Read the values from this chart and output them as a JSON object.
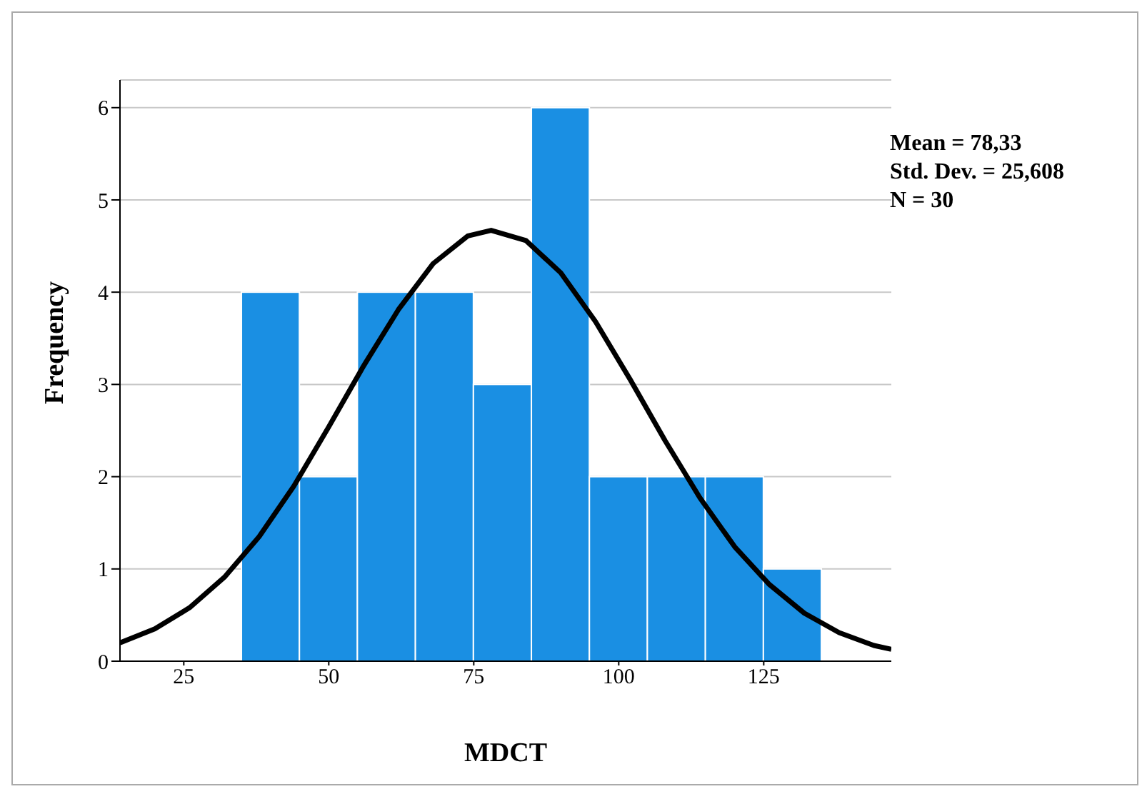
{
  "chart_data": {
    "type": "histogram",
    "xlabel": "MDCT",
    "ylabel": "Frequency",
    "bins": [
      35,
      45,
      55,
      65,
      75,
      85,
      95,
      105,
      115,
      125,
      135
    ],
    "values": [
      4,
      2,
      4,
      4,
      3,
      6,
      2,
      2,
      2,
      1
    ],
    "color": "#1a8fe3",
    "series": [
      {
        "type": "line",
        "color": "#000000",
        "x": [
          14,
          20,
          26,
          32,
          38,
          44,
          50,
          56,
          62,
          68,
          74,
          78,
          84,
          90,
          96,
          102,
          108,
          114,
          120,
          126,
          132,
          138,
          144,
          147
        ],
        "values": [
          0.2,
          0.35,
          0.58,
          0.91,
          1.35,
          1.9,
          2.54,
          3.2,
          3.81,
          4.31,
          4.61,
          4.67,
          4.56,
          4.21,
          3.68,
          3.05,
          2.39,
          1.77,
          1.24,
          0.83,
          0.52,
          0.31,
          0.17,
          0.13
        ]
      }
    ],
    "xlim": [
      14,
      147
    ],
    "xticks": [
      25,
      50,
      75,
      100,
      125
    ],
    "ylim": [
      0,
      6.3
    ],
    "yticks": [
      0,
      1,
      2,
      3,
      4,
      5,
      6
    ],
    "grid": "y",
    "annotations": [
      "Mean = 78,33",
      "Std. Dev. = 25,608",
      "N = 30"
    ]
  }
}
